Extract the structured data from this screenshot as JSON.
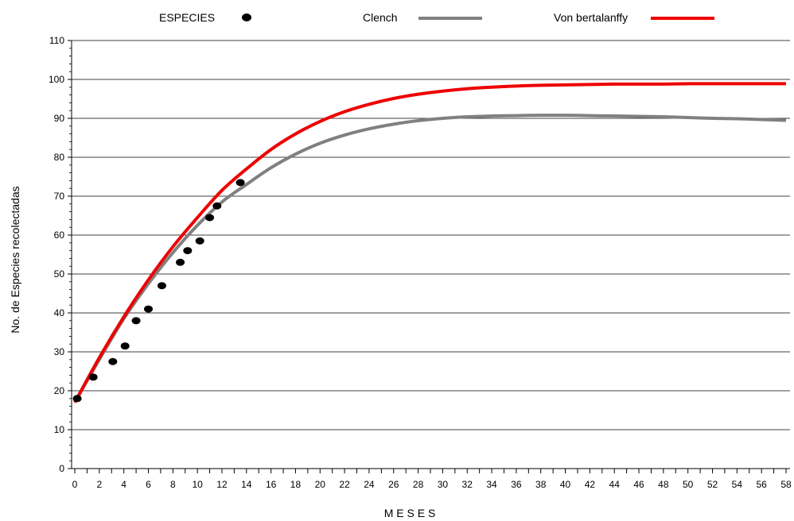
{
  "chart_data": {
    "type": "line",
    "xlabel": "M E S E S",
    "ylabel": "No. de Especies recolectadas",
    "xlim": [
      0,
      58
    ],
    "ylim": [
      0,
      110
    ],
    "xticks": [
      0,
      2,
      4,
      6,
      8,
      10,
      12,
      14,
      16,
      18,
      20,
      22,
      24,
      26,
      28,
      30,
      32,
      34,
      36,
      38,
      40,
      42,
      44,
      46,
      48,
      50,
      52,
      54,
      56,
      58
    ],
    "yticks": [
      0,
      10,
      20,
      30,
      40,
      50,
      60,
      70,
      80,
      90,
      100,
      110
    ],
    "grid": "horizontal",
    "legend_position": "top",
    "series": [
      {
        "name": "ESPECIES",
        "kind": "scatter",
        "color": "#000000",
        "x": [
          0.2,
          1.5,
          3.1,
          4.1,
          5.0,
          6.0,
          7.1,
          8.6,
          9.2,
          10.2,
          11.0,
          11.6,
          13.5
        ],
        "y": [
          18,
          23.5,
          27.5,
          31.5,
          38,
          41,
          47,
          53,
          56,
          58.5,
          64.5,
          67.5,
          73.5
        ]
      },
      {
        "name": "Clench",
        "kind": "line",
        "color": "#808080",
        "x": [
          0,
          2,
          4,
          6,
          8,
          10,
          12,
          14,
          16,
          18,
          20,
          22,
          24,
          26,
          28,
          30,
          32,
          34,
          36,
          38,
          40,
          42,
          44,
          46,
          48,
          50,
          52,
          54,
          56,
          58
        ],
        "y": [
          17,
          28,
          38.5,
          47.5,
          55.5,
          62.5,
          68.5,
          73,
          77.3,
          80.8,
          83.6,
          85.7,
          87.3,
          88.5,
          89.4,
          90.0,
          90.4,
          90.6,
          90.7,
          90.8,
          90.8,
          90.7,
          90.6,
          90.5,
          90.4,
          90.2,
          90.0,
          89.9,
          89.7,
          89.5
        ]
      },
      {
        "name": "Von bertalanffy",
        "kind": "line",
        "color": "#ee0000",
        "x": [
          0,
          2,
          4,
          6,
          8,
          10,
          12,
          14,
          16,
          18,
          20,
          22,
          24,
          26,
          28,
          30,
          32,
          34,
          36,
          38,
          40,
          42,
          44,
          46,
          48,
          50,
          52,
          54,
          56,
          58
        ],
        "y": [
          17,
          28.5,
          39,
          48.5,
          57,
          64.5,
          71.5,
          77,
          82,
          86,
          89.2,
          91.7,
          93.6,
          95.1,
          96.2,
          97.0,
          97.6,
          98.0,
          98.3,
          98.5,
          98.6,
          98.7,
          98.8,
          98.8,
          98.8,
          98.9,
          98.9,
          98.9,
          98.9,
          98.9
        ]
      }
    ]
  }
}
